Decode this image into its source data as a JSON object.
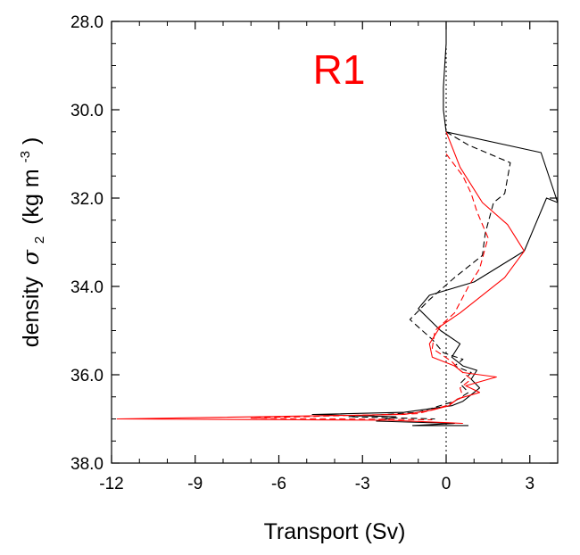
{
  "chart_data": {
    "type": "line",
    "title": "R1",
    "title_color": "#ff0000",
    "xlabel": "Transport (Sv)",
    "ylabel": {
      "prefix": "density",
      "symbol": "σ",
      "subscript": "2",
      "units_open": "(kg m",
      "units_exp": "-3",
      "units_close": ")"
    },
    "xlim": [
      -12,
      4
    ],
    "ylim": [
      38,
      28
    ],
    "y_inverted": true,
    "grid": false,
    "x_ticks": [
      -12,
      -9,
      -6,
      -3,
      0,
      3
    ],
    "x_tick_labels": [
      "-12",
      "-9",
      "-6",
      "-3",
      "0",
      "3"
    ],
    "y_ticks": [
      28,
      30,
      32,
      34,
      36,
      38
    ],
    "y_tick_labels": [
      "28.0",
      "30.0",
      "32.0",
      "34.0",
      "36.0",
      "38.0"
    ],
    "reference_line": {
      "x": 0,
      "style": "dotted",
      "color": "#000000"
    },
    "series": [
      {
        "color": "#000000",
        "style": "solid",
        "points": [
          [
            0,
            28.0
          ],
          [
            0,
            28.5
          ],
          [
            -0.05,
            29.0
          ],
          [
            -0.1,
            29.5
          ],
          [
            -0.1,
            30.0
          ],
          [
            0,
            30.5
          ],
          [
            3.4,
            30.97
          ],
          [
            4.0,
            32.1
          ],
          [
            3.6,
            32.0
          ],
          [
            2.8,
            33.2
          ],
          [
            1.0,
            33.9
          ],
          [
            -0.6,
            34.2
          ],
          [
            -1.0,
            34.5
          ],
          [
            -0.2,
            35.0
          ],
          [
            0.5,
            35.3
          ],
          [
            0.2,
            35.6
          ],
          [
            0.6,
            35.8
          ],
          [
            1.1,
            35.9
          ],
          [
            0.9,
            36.1
          ],
          [
            1.2,
            36.3
          ],
          [
            0.8,
            36.5
          ],
          [
            0.6,
            36.6
          ],
          [
            0.2,
            36.7
          ],
          [
            -1.5,
            36.85
          ],
          [
            -4.8,
            36.9
          ],
          [
            -1.8,
            36.95
          ],
          [
            -2.5,
            37.05
          ],
          [
            0.3,
            37.1
          ],
          [
            -1.2,
            37.15
          ],
          [
            0.8,
            37.15
          ]
        ]
      },
      {
        "color": "#000000",
        "style": "dashed",
        "points": [
          [
            0,
            30.5
          ],
          [
            0.8,
            30.8
          ],
          [
            2.3,
            31.2
          ],
          [
            2.1,
            31.9
          ],
          [
            1.7,
            32.1
          ],
          [
            1.4,
            32.8
          ],
          [
            1.3,
            33.3
          ],
          [
            0.3,
            33.8
          ],
          [
            -0.6,
            34.3
          ],
          [
            -1.3,
            34.75
          ],
          [
            -0.5,
            35.2
          ],
          [
            -0.1,
            35.5
          ],
          [
            0.6,
            35.65
          ],
          [
            0.3,
            35.8
          ],
          [
            0.9,
            35.95
          ],
          [
            0.5,
            36.2
          ],
          [
            0.8,
            36.4
          ],
          [
            0.3,
            36.6
          ],
          [
            -1.0,
            36.85
          ],
          [
            -3.5,
            36.95
          ],
          [
            -0.4,
            37.0
          ]
        ]
      },
      {
        "color": "#ff0000",
        "style": "solid",
        "points": [
          [
            0,
            30.5
          ],
          [
            0.5,
            31.3
          ],
          [
            1.3,
            32.1
          ],
          [
            2.2,
            32.6
          ],
          [
            2.8,
            33.2
          ],
          [
            2.1,
            33.8
          ],
          [
            1.1,
            34.3
          ],
          [
            0.5,
            34.6
          ],
          [
            -0.2,
            34.9
          ],
          [
            -0.6,
            35.3
          ],
          [
            -0.5,
            35.6
          ],
          [
            0.3,
            35.8
          ],
          [
            0.6,
            35.95
          ],
          [
            1.8,
            36.05
          ],
          [
            0.7,
            36.25
          ],
          [
            1.2,
            36.4
          ],
          [
            0.4,
            36.55
          ],
          [
            0.1,
            36.7
          ],
          [
            -0.5,
            36.8
          ],
          [
            -1.5,
            36.9
          ],
          [
            -11.8,
            37.0
          ],
          [
            -2.0,
            37.03
          ],
          [
            0.6,
            37.1
          ]
        ]
      },
      {
        "color": "#ff0000",
        "style": "dashed",
        "points": [
          [
            0,
            31.0
          ],
          [
            0.6,
            31.5
          ],
          [
            0.9,
            31.9
          ],
          [
            1.1,
            32.3
          ],
          [
            1.5,
            32.9
          ],
          [
            1.2,
            33.6
          ],
          [
            0.8,
            34.0
          ],
          [
            0.3,
            34.6
          ],
          [
            -0.4,
            35.0
          ],
          [
            -0.5,
            35.4
          ],
          [
            0.2,
            35.7
          ],
          [
            0.5,
            35.9
          ],
          [
            0.9,
            36.1
          ],
          [
            0.5,
            36.3
          ],
          [
            0.6,
            36.5
          ],
          [
            0.0,
            36.7
          ],
          [
            -1.0,
            36.88
          ],
          [
            -7.0,
            36.98
          ],
          [
            -0.5,
            37.02
          ]
        ]
      }
    ]
  }
}
